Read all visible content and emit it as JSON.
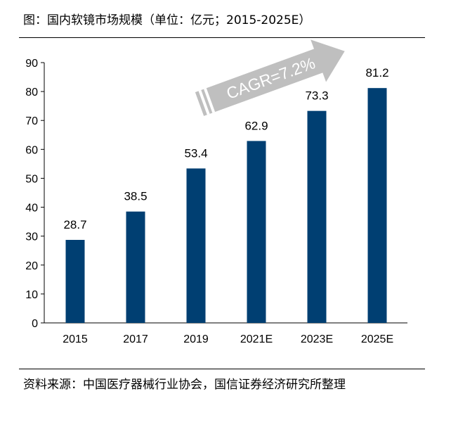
{
  "chart_data": {
    "type": "bar",
    "title": "图：国内软镜市场规模（单位：亿元；2015-2025E）",
    "categories": [
      "2015",
      "2017",
      "2019",
      "2021E",
      "2023E",
      "2025E"
    ],
    "values": [
      28.7,
      38.5,
      53.4,
      62.9,
      73.3,
      81.2
    ],
    "value_labels": [
      "28.7",
      "38.5",
      "53.4",
      "62.9",
      "73.3",
      "81.2"
    ],
    "ylim": [
      0,
      90
    ],
    "yticks": [
      "0",
      "10",
      "20",
      "30",
      "40",
      "50",
      "60",
      "70",
      "80",
      "90"
    ],
    "xlabel": "",
    "ylabel": "",
    "grid": false,
    "bar_color": "#003f72",
    "annotation": "CAGR=7.2%",
    "annotation_color": "#bfbfbf",
    "source": "资料来源：中国医疗器械行业协会，国信证券经济研究所整理"
  }
}
